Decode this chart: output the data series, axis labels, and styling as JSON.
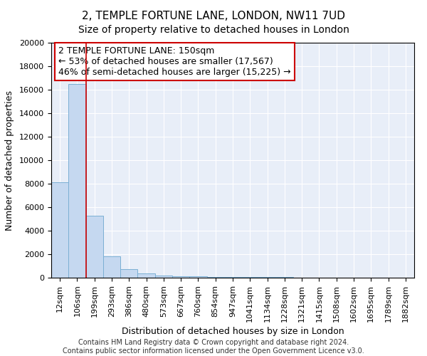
{
  "title1": "2, TEMPLE FORTUNE LANE, LONDON, NW11 7UD",
  "title2": "Size of property relative to detached houses in London",
  "xlabel": "Distribution of detached houses by size in London",
  "ylabel": "Number of detached properties",
  "annotation_line1": "2 TEMPLE FORTUNE LANE: 150sqm",
  "annotation_line2": "← 53% of detached houses are smaller (17,567)",
  "annotation_line3": "46% of semi-detached houses are larger (15,225) →",
  "footer1": "Contains HM Land Registry data © Crown copyright and database right 2024.",
  "footer2": "Contains public sector information licensed under the Open Government Licence v3.0.",
  "categories": [
    "12sqm",
    "106sqm",
    "199sqm",
    "293sqm",
    "386sqm",
    "480sqm",
    "573sqm",
    "667sqm",
    "760sqm",
    "854sqm",
    "947sqm",
    "1041sqm",
    "1134sqm",
    "1228sqm",
    "1321sqm",
    "1415sqm",
    "1508sqm",
    "1602sqm",
    "1695sqm",
    "1789sqm",
    "1882sqm"
  ],
  "bar_heights": [
    8100,
    16500,
    5300,
    1800,
    700,
    350,
    200,
    150,
    100,
    80,
    70,
    60,
    50,
    40,
    30,
    20,
    20,
    15,
    10,
    8,
    5
  ],
  "bar_color": "#c5d8f0",
  "bar_edge_color": "#7bafd4",
  "red_line_x": 1.5,
  "ylim_max": 20000,
  "yticks": [
    0,
    2000,
    4000,
    6000,
    8000,
    10000,
    12000,
    14000,
    16000,
    18000,
    20000
  ],
  "background_color": "#e8eef8",
  "grid_color": "#ffffff",
  "annotation_box_color": "#ffffff",
  "annotation_border_color": "#cc0000",
  "red_line_color": "#cc0000",
  "title1_fontsize": 11,
  "title2_fontsize": 10,
  "xlabel_fontsize": 9,
  "ylabel_fontsize": 9,
  "tick_fontsize": 8,
  "annotation_fontsize": 9,
  "footer_fontsize": 7
}
